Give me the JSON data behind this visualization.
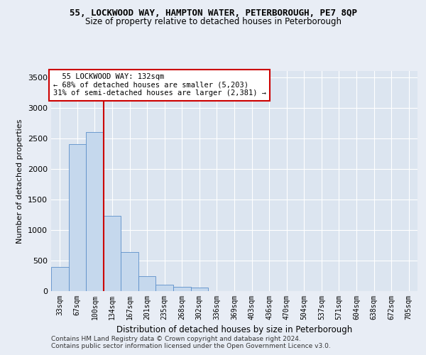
{
  "title_line1": "55, LOCKWOOD WAY, HAMPTON WATER, PETERBOROUGH, PE7 8QP",
  "title_line2": "Size of property relative to detached houses in Peterborough",
  "xlabel": "Distribution of detached houses by size in Peterborough",
  "ylabel": "Number of detached properties",
  "footer_line1": "Contains HM Land Registry data © Crown copyright and database right 2024.",
  "footer_line2": "Contains public sector information licensed under the Open Government Licence v3.0.",
  "bar_labels": [
    "33sqm",
    "67sqm",
    "100sqm",
    "134sqm",
    "167sqm",
    "201sqm",
    "235sqm",
    "268sqm",
    "302sqm",
    "336sqm",
    "369sqm",
    "403sqm",
    "436sqm",
    "470sqm",
    "504sqm",
    "537sqm",
    "571sqm",
    "604sqm",
    "638sqm",
    "672sqm",
    "705sqm"
  ],
  "bar_values": [
    390,
    2400,
    2600,
    1230,
    640,
    240,
    110,
    70,
    60,
    0,
    0,
    0,
    0,
    0,
    0,
    0,
    0,
    0,
    0,
    0,
    0
  ],
  "bar_color": "#c5d8ed",
  "bar_edge_color": "#5b8fc9",
  "vline_x": 2.5,
  "annotation_text": "  55 LOCKWOOD WAY: 132sqm  \n← 68% of detached houses are smaller (5,203)\n31% of semi-detached houses are larger (2,381) →",
  "annotation_box_color": "#ffffff",
  "annotation_box_edge_color": "#cc0000",
  "vline_color": "#cc0000",
  "ylim": [
    0,
    3600
  ],
  "yticks": [
    0,
    500,
    1000,
    1500,
    2000,
    2500,
    3000,
    3500
  ],
  "background_color": "#e8edf5",
  "plot_bg_color": "#dce5f0",
  "title1_fontsize": 9,
  "title2_fontsize": 8.5,
  "ylabel_fontsize": 8,
  "xlabel_fontsize": 8.5,
  "tick_fontsize": 7,
  "annotation_fontsize": 7.5,
  "footer_fontsize": 6.5
}
